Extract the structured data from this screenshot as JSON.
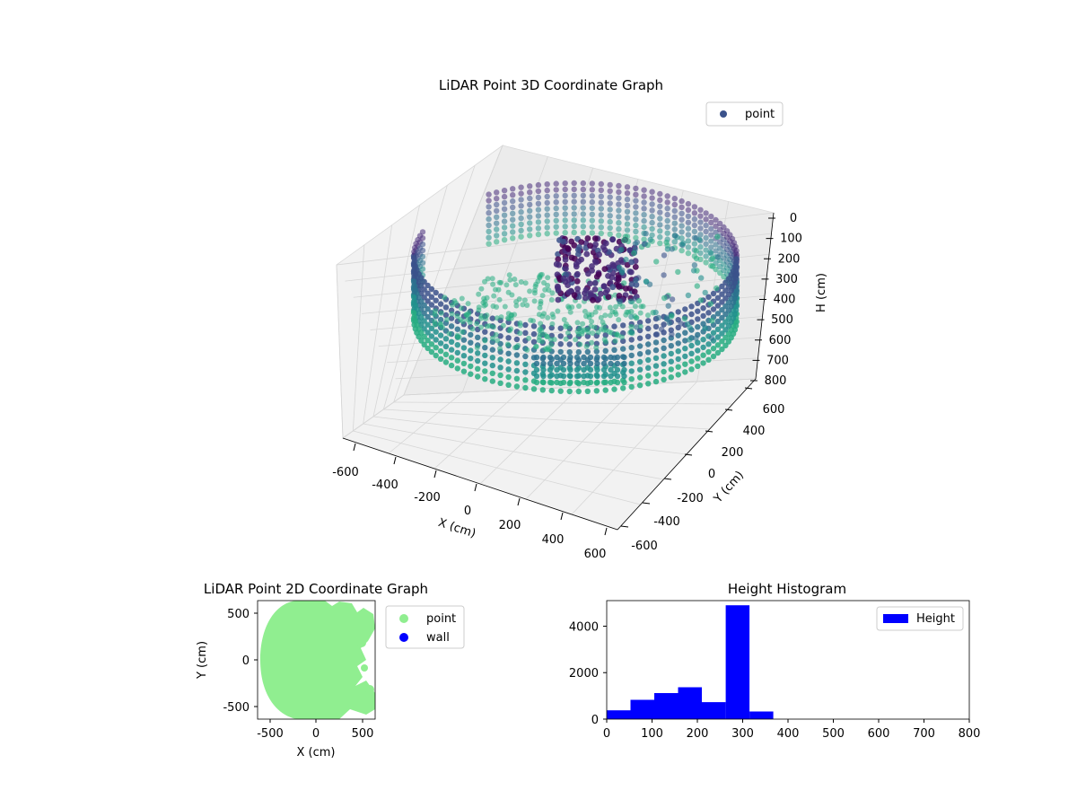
{
  "chart_data": [
    {
      "type": "scatter",
      "projection": "3d",
      "title": "LiDAR Point 3D Coordinate Graph",
      "xlabel": "X (cm)",
      "ylabel": "Y (cm)",
      "zlabel": "H (cm)",
      "xlim": [
        -650,
        650
      ],
      "ylim": [
        -650,
        650
      ],
      "zlim": [
        800,
        0
      ],
      "xticks": [
        "-600",
        "-400",
        "-200",
        "0",
        "200",
        "400",
        "600"
      ],
      "yticks": [
        "-600",
        "-400",
        "-200",
        "0",
        "200",
        "400",
        "600"
      ],
      "zticks": [
        "0",
        "100",
        "200",
        "300",
        "400",
        "500",
        "600",
        "700",
        "800"
      ],
      "grid": true,
      "legend_position": "top-right",
      "colormap": "viridis",
      "series": [
        {
          "name": "point",
          "color": "#3b528b",
          "description_shape": "ring-shaped wall of points, radius about 600 cm, heights 0-400 cm, with interior clutter"
        }
      ]
    },
    {
      "type": "scatter",
      "title": "LiDAR Point 2D Coordinate Graph",
      "xlabel": "X (cm)",
      "ylabel": "Y (cm)",
      "xlim": [
        -620,
        620
      ],
      "ylim": [
        -620,
        620
      ],
      "xticks": [
        "-500",
        "0",
        "500"
      ],
      "yticks": [
        "500",
        "0",
        "-500"
      ],
      "legend_position": "outside-right",
      "series": [
        {
          "name": "point",
          "color": "#90ee90"
        },
        {
          "name": "wall",
          "color": "#0000ff"
        }
      ]
    },
    {
      "type": "bar",
      "title": "Height Histogram",
      "xlim": [
        0,
        800
      ],
      "ylim": [
        0,
        5100
      ],
      "xticks": [
        "0",
        "100",
        "200",
        "300",
        "400",
        "500",
        "600",
        "700",
        "800"
      ],
      "yticks": [
        "0",
        "2000",
        "4000"
      ],
      "legend_position": "top-right",
      "series": [
        {
          "name": "Height",
          "color": "#0000ff",
          "bins": [
            {
              "start": 0,
              "end": 52.5,
              "count": 380
            },
            {
              "start": 52.5,
              "end": 105,
              "count": 830
            },
            {
              "start": 105,
              "end": 157.5,
              "count": 1120
            },
            {
              "start": 157.5,
              "end": 210,
              "count": 1370
            },
            {
              "start": 210,
              "end": 262.5,
              "count": 730
            },
            {
              "start": 262.5,
              "end": 315,
              "count": 4900
            },
            {
              "start": 315,
              "end": 367.5,
              "count": 330
            }
          ]
        }
      ]
    }
  ]
}
